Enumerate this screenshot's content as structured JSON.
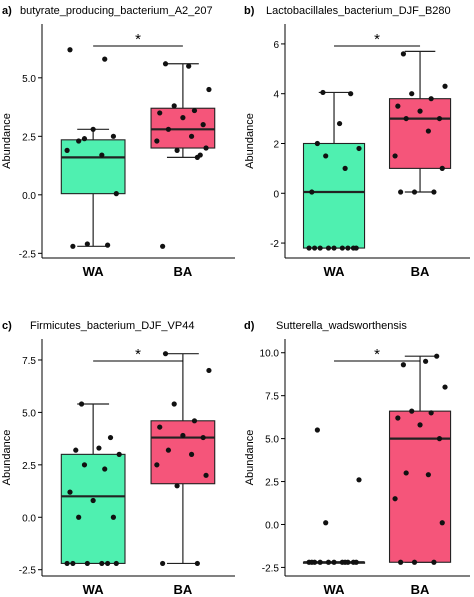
{
  "colors": {
    "wa": "#4ff0b0",
    "ba": "#f5557a",
    "stroke": "#222222",
    "point": "#111111"
  },
  "chart_data": [
    {
      "panel": "a)",
      "type": "box",
      "title": "butyrate_producing_bacterium_A2_207",
      "xlabel": "",
      "ylabel": "Abundance",
      "ylim": [
        -2.7,
        7.3
      ],
      "yticks": [
        -2.5,
        0.0,
        2.5,
        5.0
      ],
      "ytick_labels": [
        "-2.5",
        "0.0",
        "2.5",
        "5.0"
      ],
      "grid": false,
      "significance": "*",
      "categories": [
        "WA",
        "BA"
      ],
      "boxes": [
        {
          "category": "WA",
          "whisker_low": -2.2,
          "q1": 0.05,
          "median": 1.6,
          "q3": 2.35,
          "whisker_high": 2.8,
          "points": [
            -2.2,
            -2.15,
            -2.1,
            0.05,
            1.9,
            1.7,
            2.3,
            2.5,
            2.8,
            6.2,
            5.8,
            2.4
          ]
        },
        {
          "category": "BA",
          "whisker_low": 1.6,
          "q1": 2.0,
          "median": 2.8,
          "q3": 3.7,
          "whisker_high": 5.6,
          "points": [
            -2.2,
            1.6,
            1.9,
            2.0,
            2.3,
            2.5,
            2.8,
            3.0,
            3.3,
            3.5,
            3.6,
            3.8,
            4.5,
            5.6,
            5.5,
            1.7
          ]
        }
      ]
    },
    {
      "panel": "b)",
      "type": "box",
      "title": "Lactobacillales_bacterium_DJF_B280",
      "xlabel": "",
      "ylabel": "Abundance",
      "ylim": [
        -2.6,
        6.8
      ],
      "yticks": [
        -2,
        0,
        2,
        4,
        6
      ],
      "ytick_labels": [
        "-2",
        "0",
        "2",
        "4",
        "6"
      ],
      "grid": false,
      "significance": "*",
      "categories": [
        "WA",
        "BA"
      ],
      "boxes": [
        {
          "category": "WA",
          "whisker_low": -2.2,
          "q1": -2.2,
          "median": 0.05,
          "q3": 2.0,
          "whisker_high": 4.05,
          "points": [
            -2.2,
            -2.2,
            -2.2,
            -2.2,
            -2.2,
            -2.2,
            -2.2,
            -2.2,
            -2.2,
            0.05,
            1.0,
            1.5,
            1.8,
            2.0,
            2.8,
            4.0,
            4.05
          ]
        },
        {
          "category": "BA",
          "whisker_low": 0.05,
          "q1": 1.0,
          "median": 3.0,
          "q3": 3.8,
          "whisker_high": 5.7,
          "points": [
            0.05,
            0.05,
            0.05,
            1.0,
            1.5,
            2.5,
            3.0,
            3.0,
            3.3,
            3.5,
            3.8,
            4.0,
            4.3,
            5.6
          ]
        }
      ]
    },
    {
      "panel": "c)",
      "type": "box",
      "title": "Firmicutes_bacterium_DJF_VP44",
      "xlabel": "",
      "ylabel": "Abundance",
      "ylim": [
        -2.8,
        8.5
      ],
      "yticks": [
        -2.5,
        0.0,
        2.5,
        5.0,
        7.5
      ],
      "ytick_labels": [
        "-2.5",
        "0.0",
        "2.5",
        "5.0",
        "7.5"
      ],
      "grid": false,
      "significance": "*",
      "categories": [
        "WA",
        "BA"
      ],
      "boxes": [
        {
          "category": "WA",
          "whisker_low": -2.2,
          "q1": -2.2,
          "median": 1.0,
          "q3": 3.0,
          "whisker_high": 5.4,
          "points": [
            -2.2,
            -2.2,
            -2.2,
            -2.2,
            -2.2,
            -2.2,
            0.0,
            0.0,
            0.8,
            1.2,
            2.3,
            2.5,
            3.0,
            3.2,
            3.3,
            3.8,
            5.4
          ]
        },
        {
          "category": "BA",
          "whisker_low": -2.2,
          "q1": 1.6,
          "median": 3.8,
          "q3": 4.6,
          "whisker_high": 7.8,
          "points": [
            -2.2,
            -2.2,
            1.5,
            2.0,
            2.5,
            3.0,
            3.2,
            3.8,
            3.9,
            4.3,
            4.6,
            5.4,
            7.0,
            7.8
          ]
        }
      ]
    },
    {
      "panel": "d)",
      "type": "box",
      "title": "Sutterella_wadsworthensis",
      "xlabel": "",
      "ylabel": "Abundance",
      "ylim": [
        -3.0,
        10.8
      ],
      "yticks": [
        -2.5,
        0.0,
        2.5,
        5.0,
        7.5,
        10.0
      ],
      "ytick_labels": [
        "-2.5",
        "0.0",
        "2.5",
        "5.0",
        "7.5",
        "10.0"
      ],
      "grid": false,
      "significance": "*",
      "categories": [
        "WA",
        "BA"
      ],
      "boxes": [
        {
          "category": "WA",
          "whisker_low": -2.2,
          "q1": -2.2,
          "median": -2.2,
          "q3": -2.2,
          "whisker_high": -2.2,
          "points": [
            -2.2,
            -2.2,
            -2.2,
            -2.2,
            -2.2,
            -2.2,
            -2.2,
            -2.2,
            -2.2,
            -2.2,
            -2.2,
            0.1,
            2.6,
            5.5
          ]
        },
        {
          "category": "BA",
          "whisker_low": -2.2,
          "q1": -2.2,
          "median": 5.0,
          "q3": 6.6,
          "whisker_high": 9.8,
          "points": [
            -2.2,
            -2.2,
            -2.2,
            0.1,
            1.5,
            2.9,
            3.0,
            5.0,
            5.8,
            6.2,
            6.5,
            6.6,
            8.0,
            9.3,
            9.5,
            9.8
          ]
        }
      ]
    }
  ]
}
